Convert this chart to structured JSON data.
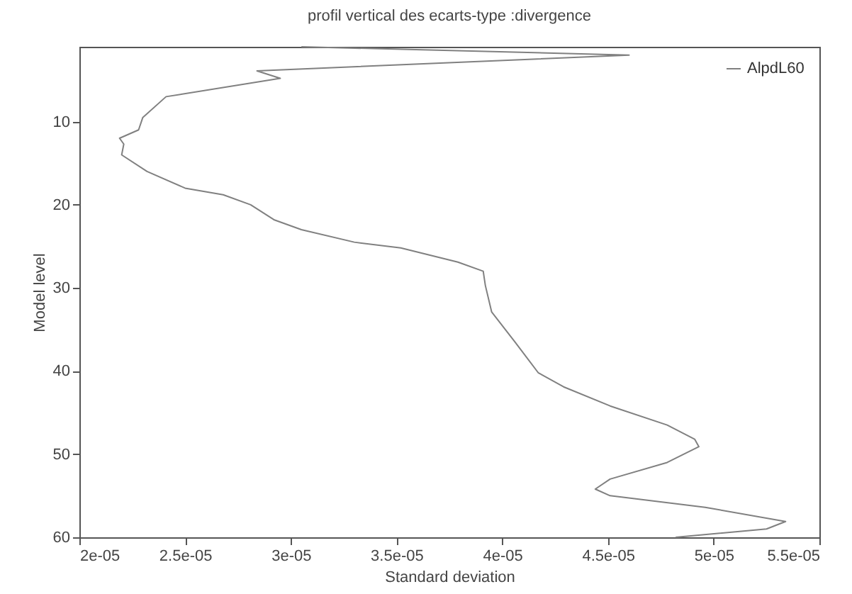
{
  "chart_data": {
    "type": "line",
    "title": "profil vertical des ecarts-type :divergence",
    "xlabel": "Standard deviation",
    "ylabel": "Model level",
    "xlim": [
      2e-05,
      5.5e-05
    ],
    "xticks": [
      {
        "value": 2e-05,
        "label": "2e-05"
      },
      {
        "value": 2.5e-05,
        "label": "2.5e-05"
      },
      {
        "value": 3e-05,
        "label": "3e-05"
      },
      {
        "value": 3.5e-05,
        "label": "3.5e-05"
      },
      {
        "value": 4e-05,
        "label": "4e-05"
      },
      {
        "value": 4.5e-05,
        "label": "4.5e-05"
      },
      {
        "value": 5e-05,
        "label": "5e-05"
      },
      {
        "value": 5.5e-05,
        "label": "5.5e-05"
      }
    ],
    "ylim": [
      60,
      1
    ],
    "yticks": [
      10,
      20,
      30,
      40,
      50,
      60
    ],
    "grid": false,
    "legend": "top right",
    "series": [
      {
        "name": "AlpdL60",
        "color": "#808080",
        "x": [
          3.05e-05,
          4.6e-05,
          2.84e-05,
          2.95e-05,
          2.41e-05,
          2.3e-05,
          2.28e-05,
          2.19e-05,
          2.21e-05,
          2.2e-05,
          2.32e-05,
          2.5e-05,
          2.68e-05,
          2.81e-05,
          2.92e-05,
          3.05e-05,
          3.3e-05,
          3.52e-05,
          3.79e-05,
          3.91e-05,
          3.92e-05,
          3.95e-05,
          4.06e-05,
          4.17e-05,
          4.29e-05,
          4.51e-05,
          4.78e-05,
          4.91e-05,
          4.93e-05,
          4.78e-05,
          4.51e-05,
          4.44e-05,
          4.51e-05,
          4.96e-05,
          5.34e-05,
          5.25e-05,
          4.82e-05
        ],
        "values": [
          1,
          2,
          3.9,
          4.8,
          7,
          9.5,
          11,
          12,
          12.7,
          14,
          16,
          18,
          18.8,
          20,
          21.8,
          23,
          24.5,
          25.2,
          26.9,
          28,
          29.7,
          32.9,
          36.5,
          40.2,
          41.9,
          44.2,
          46.5,
          48.2,
          49.1,
          51,
          53,
          54.2,
          55,
          56.4,
          58.1,
          59,
          60
        ]
      }
    ]
  }
}
